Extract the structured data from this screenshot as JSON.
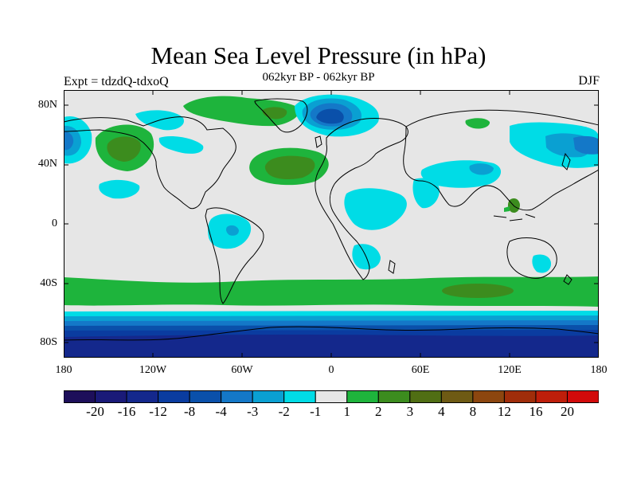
{
  "title": "Mean Sea Level Pressure (in hPa)",
  "subtitle": "062kyr BP - 062kyr BP",
  "experiment_label": "Expt = tdzdQ-tdxoQ",
  "season": "DJF",
  "lat_labels": [
    "80N",
    "40N",
    "0",
    "40S",
    "80S"
  ],
  "lon_labels": [
    "180",
    "120W",
    "60W",
    "0",
    "60E",
    "120E",
    "180"
  ],
  "colorbar": {
    "colors": [
      "#1d0f5a",
      "#1a1a78",
      "#14288c",
      "#0a3ca0",
      "#0a50aa",
      "#1478c8",
      "#0aa0d2",
      "#00dce6",
      "#e6e6e6",
      "#1eb43c",
      "#3c8c1e",
      "#506e14",
      "#6e5a14",
      "#8c460f",
      "#a02d0a",
      "#be1e0a",
      "#d20a0a"
    ],
    "labels": [
      "-20",
      "-16",
      "-12",
      "-8",
      "-4",
      "-3",
      "-2",
      "-1",
      "1",
      "2",
      "3",
      "4",
      "8",
      "12",
      "16",
      "20"
    ]
  },
  "colors": {
    "background": "#e6e6e6",
    "land_outline": "#000000",
    "neg1": "#00dce6",
    "neg2": "#0aa0d2",
    "neg3": "#1478c8",
    "neg4": "#0a50aa",
    "neg8": "#0a3ca0",
    "neg12": "#14288c",
    "pos1": "#1eb43c",
    "pos2": "#3c8c1e",
    "pos3": "#506e14"
  }
}
